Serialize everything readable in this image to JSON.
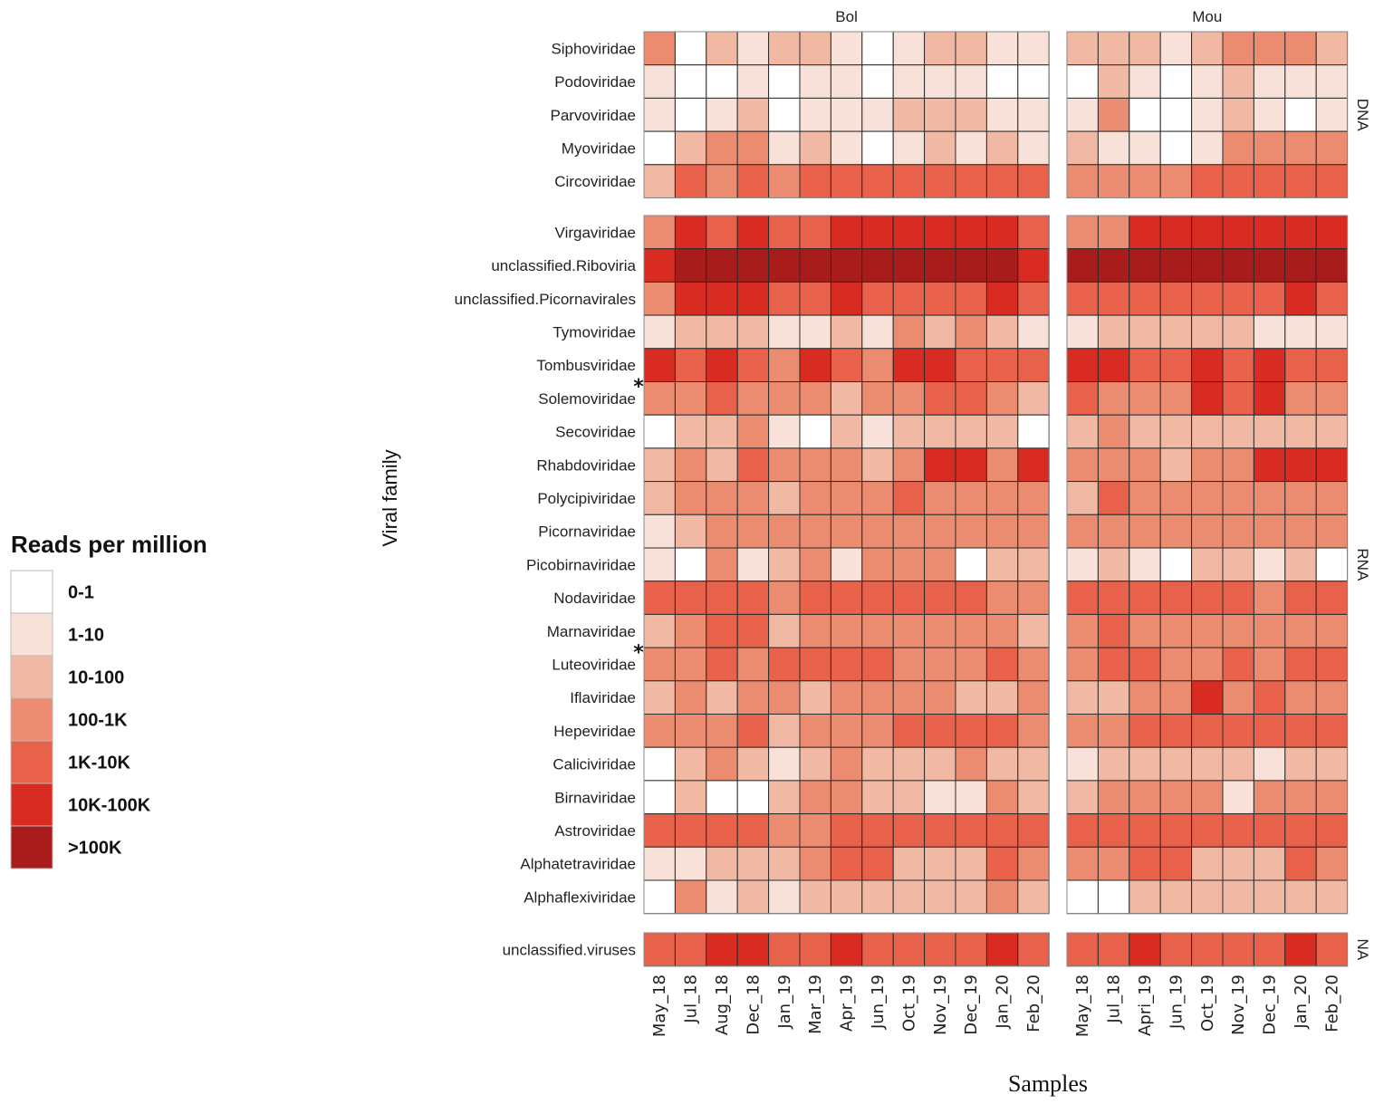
{
  "chart_data": {
    "type": "heatmap",
    "title": "",
    "xlabel": "Samples",
    "ylabel": "Viral family",
    "legend": {
      "title": "Reads per million",
      "placement": "left",
      "categories": [
        "0-1",
        "1-10",
        "10-100",
        "100-1K",
        "1K-10K",
        "10K-100K",
        ">100K"
      ],
      "colors": [
        "#ffffff",
        "#f7e1d8",
        "#f1b8a3",
        "#eb8c70",
        "#e8614a",
        "#d82b22",
        "#a81d1b"
      ]
    },
    "facets_columns": [
      {
        "name": "Bol",
        "samples": [
          "May_18",
          "Jul_18",
          "Aug_18",
          "Dec_18",
          "Jan_19",
          "Mar_19",
          "Apr_19",
          "Jun_19",
          "Oct_19",
          "Nov_19",
          "Dec_19",
          "Jan_20",
          "Feb_20"
        ]
      },
      {
        "name": "Mou",
        "samples": [
          "May_18",
          "Jul_18",
          "Apri_19",
          "Jun_19",
          "Oct_19",
          "Nov_19",
          "Dec_19",
          "Jan_20",
          "Feb_20"
        ]
      }
    ],
    "facets_rows": [
      {
        "name": "DNA",
        "families": [
          "Siphoviridae",
          "Podoviridae",
          "Parvoviridae",
          "Myoviridae",
          "Circoviridae"
        ]
      },
      {
        "name": "RNA",
        "families": [
          "Virgaviridae",
          "unclassified.Riboviria",
          "unclassified.Picornavirales",
          "Tymoviridae",
          "Tombusviridae",
          "Solemoviridae",
          "Secoviridae",
          "Rhabdoviridae",
          "Polycipiviridae",
          "Picornaviridae",
          "Picobirnaviridae",
          "Nodaviridae",
          "Marnaviridae",
          "Luteoviridae",
          "Iflaviridae",
          "Hepeviridae",
          "Caliciviridae",
          "Birnaviridae",
          "Astroviridae",
          "Alphatetraviridae",
          "Alphaflexiviridae"
        ]
      },
      {
        "name": "NA",
        "families": [
          "unclassified.viruses"
        ]
      }
    ],
    "starred_families": [
      "Solemoviridae",
      "Luteoviridae"
    ],
    "star_symbol": "*",
    "values_note": "category index 0-6 into legend.categories",
    "values": {
      "DNA": {
        "Bol": [
          [
            3,
            0,
            2,
            1,
            2,
            2,
            1,
            0,
            1,
            2,
            2,
            1,
            1
          ],
          [
            1,
            0,
            0,
            1,
            0,
            1,
            1,
            0,
            1,
            1,
            1,
            0,
            0
          ],
          [
            1,
            0,
            1,
            2,
            0,
            1,
            1,
            1,
            2,
            2,
            2,
            1,
            1
          ],
          [
            0,
            2,
            3,
            3,
            1,
            2,
            1,
            0,
            1,
            2,
            1,
            2,
            1
          ],
          [
            2,
            4,
            3,
            4,
            3,
            4,
            4,
            4,
            4,
            4,
            4,
            4,
            4
          ]
        ],
        "Mou": [
          [
            2,
            2,
            2,
            1,
            2,
            3,
            3,
            3,
            2
          ],
          [
            0,
            2,
            1,
            0,
            1,
            2,
            1,
            1,
            1
          ],
          [
            1,
            3,
            0,
            0,
            1,
            2,
            1,
            0,
            1
          ],
          [
            2,
            1,
            1,
            0,
            1,
            3,
            3,
            3,
            3
          ],
          [
            3,
            3,
            3,
            3,
            4,
            4,
            4,
            4,
            4
          ]
        ]
      },
      "RNA": {
        "Bol": [
          [
            3,
            5,
            4,
            5,
            4,
            4,
            5,
            5,
            5,
            5,
            5,
            5,
            4
          ],
          [
            5,
            6,
            6,
            6,
            6,
            6,
            6,
            6,
            6,
            6,
            6,
            6,
            5
          ],
          [
            3,
            5,
            5,
            5,
            4,
            4,
            5,
            4,
            4,
            4,
            4,
            5,
            4
          ],
          [
            1,
            2,
            2,
            2,
            1,
            1,
            2,
            1,
            3,
            2,
            3,
            2,
            1
          ],
          [
            5,
            4,
            5,
            4,
            3,
            5,
            4,
            3,
            5,
            5,
            4,
            4,
            4
          ],
          [
            3,
            3,
            4,
            3,
            3,
            3,
            2,
            3,
            3,
            4,
            4,
            3,
            2
          ],
          [
            0,
            2,
            2,
            3,
            1,
            0,
            2,
            1,
            2,
            2,
            2,
            2,
            0
          ],
          [
            2,
            3,
            2,
            4,
            3,
            3,
            3,
            2,
            3,
            5,
            5,
            3,
            5
          ],
          [
            2,
            3,
            3,
            3,
            2,
            3,
            3,
            3,
            4,
            3,
            3,
            3,
            3
          ],
          [
            1,
            2,
            3,
            3,
            3,
            3,
            3,
            3,
            3,
            3,
            3,
            3,
            3
          ],
          [
            1,
            0,
            3,
            1,
            2,
            3,
            1,
            3,
            3,
            3,
            0,
            2,
            2
          ],
          [
            4,
            4,
            4,
            4,
            3,
            4,
            4,
            4,
            4,
            4,
            4,
            3,
            3
          ],
          [
            2,
            3,
            4,
            4,
            2,
            3,
            3,
            3,
            3,
            3,
            3,
            3,
            2
          ],
          [
            3,
            3,
            4,
            3,
            4,
            4,
            4,
            4,
            3,
            3,
            3,
            4,
            3
          ],
          [
            2,
            3,
            2,
            3,
            3,
            2,
            3,
            3,
            3,
            3,
            2,
            2,
            3
          ],
          [
            3,
            3,
            3,
            4,
            2,
            3,
            3,
            3,
            4,
            4,
            4,
            4,
            3
          ],
          [
            0,
            2,
            3,
            2,
            1,
            2,
            3,
            2,
            2,
            2,
            3,
            2,
            2
          ],
          [
            0,
            2,
            0,
            0,
            2,
            3,
            3,
            2,
            2,
            1,
            1,
            3,
            2
          ],
          [
            4,
            4,
            4,
            4,
            3,
            3,
            4,
            4,
            4,
            4,
            4,
            4,
            4
          ],
          [
            1,
            1,
            2,
            2,
            2,
            3,
            4,
            4,
            2,
            2,
            2,
            4,
            3
          ],
          [
            0,
            3,
            1,
            2,
            1,
            2,
            2,
            2,
            2,
            2,
            2,
            3,
            2
          ]
        ],
        "Mou": [
          [
            3,
            3,
            5,
            5,
            5,
            5,
            5,
            5,
            5
          ],
          [
            6,
            6,
            6,
            6,
            6,
            6,
            6,
            6,
            6
          ],
          [
            4,
            4,
            4,
            4,
            4,
            4,
            4,
            5,
            4
          ],
          [
            1,
            2,
            2,
            2,
            2,
            2,
            1,
            1,
            1
          ],
          [
            5,
            5,
            4,
            4,
            5,
            4,
            5,
            4,
            4
          ],
          [
            4,
            3,
            3,
            3,
            5,
            4,
            5,
            3,
            3
          ],
          [
            2,
            3,
            2,
            2,
            2,
            2,
            2,
            2,
            2
          ],
          [
            3,
            3,
            3,
            2,
            3,
            3,
            5,
            5,
            5
          ],
          [
            2,
            4,
            3,
            3,
            3,
            3,
            3,
            3,
            3
          ],
          [
            3,
            3,
            3,
            3,
            3,
            3,
            3,
            3,
            3
          ],
          [
            1,
            2,
            1,
            0,
            2,
            2,
            1,
            2,
            0
          ],
          [
            4,
            4,
            4,
            4,
            4,
            4,
            3,
            4,
            4
          ],
          [
            3,
            4,
            3,
            3,
            3,
            3,
            3,
            3,
            3
          ],
          [
            3,
            4,
            4,
            3,
            3,
            4,
            3,
            4,
            4
          ],
          [
            2,
            2,
            3,
            3,
            5,
            3,
            4,
            3,
            3
          ],
          [
            3,
            3,
            4,
            4,
            4,
            4,
            4,
            4,
            4
          ],
          [
            1,
            2,
            2,
            2,
            2,
            2,
            1,
            2,
            2
          ],
          [
            2,
            3,
            3,
            3,
            3,
            1,
            3,
            3,
            3
          ],
          [
            4,
            4,
            4,
            4,
            4,
            4,
            4,
            4,
            4
          ],
          [
            3,
            3,
            4,
            4,
            2,
            2,
            2,
            4,
            3
          ],
          [
            0,
            0,
            2,
            2,
            2,
            2,
            2,
            2,
            2
          ]
        ]
      },
      "NA": {
        "Bol": [
          [
            4,
            4,
            5,
            5,
            4,
            4,
            5,
            4,
            4,
            4,
            4,
            5,
            4
          ]
        ],
        "Mou": [
          [
            4,
            4,
            5,
            4,
            4,
            4,
            4,
            5,
            4
          ]
        ]
      }
    }
  }
}
